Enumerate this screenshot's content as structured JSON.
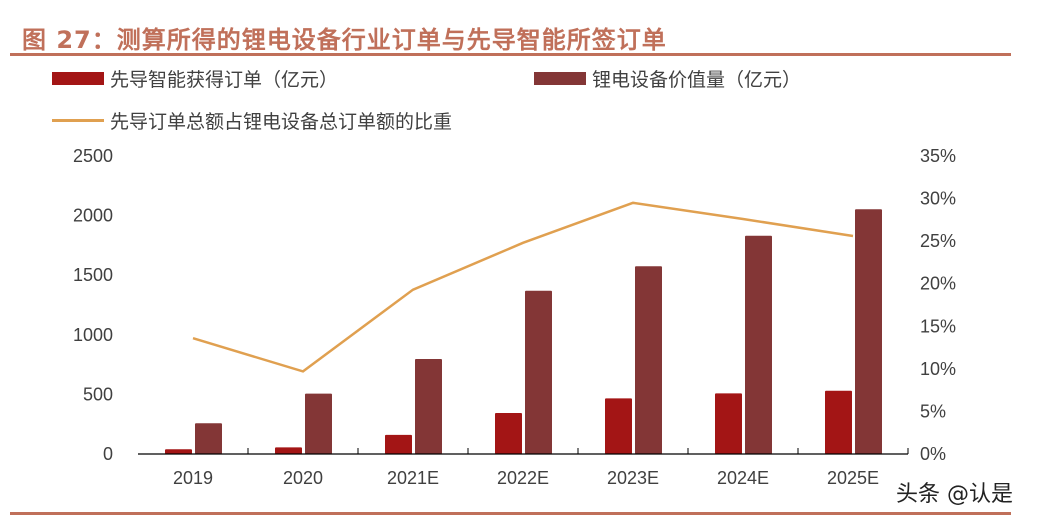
{
  "title": "图 27：测算所得的锂电设备行业订单与先导智能所签订单",
  "watermark": "头条 @认是",
  "colors": {
    "accent": "#c0705a",
    "series1": "#a31515",
    "series2": "#833636",
    "line": "#e0a050"
  },
  "chart_data": {
    "type": "bar",
    "categories": [
      "2019",
      "2020",
      "2021E",
      "2022E",
      "2023E",
      "2024E",
      "2025E"
    ],
    "series": [
      {
        "name": "先导智能获得订单（亿元）",
        "type": "bar",
        "axis": "left",
        "color": "#a31515",
        "values": [
          40,
          56,
          160,
          344,
          467,
          509,
          531
        ]
      },
      {
        "name": "锂电设备价值量（亿元）",
        "type": "bar",
        "axis": "left",
        "color": "#833636",
        "values": [
          258,
          506,
          797,
          1370,
          1575,
          1831,
          2053
        ]
      },
      {
        "name": "先导订单总额占锂电设备总订单额的比重",
        "type": "line",
        "axis": "right",
        "color": "#e0a050",
        "values": [
          13.6,
          9.7,
          19.3,
          24.8,
          29.5,
          27.6,
          25.6
        ]
      }
    ],
    "y_left": {
      "range": [
        0,
        2500
      ],
      "ticks": [
        "0",
        "500",
        "1000",
        "1500",
        "2000",
        "2500"
      ]
    },
    "y_right": {
      "range": [
        0,
        35
      ],
      "ticks": [
        "0%",
        "5%",
        "10%",
        "15%",
        "20%",
        "25%",
        "30%",
        "35%"
      ]
    },
    "grid": false,
    "legend_placement": "top"
  }
}
